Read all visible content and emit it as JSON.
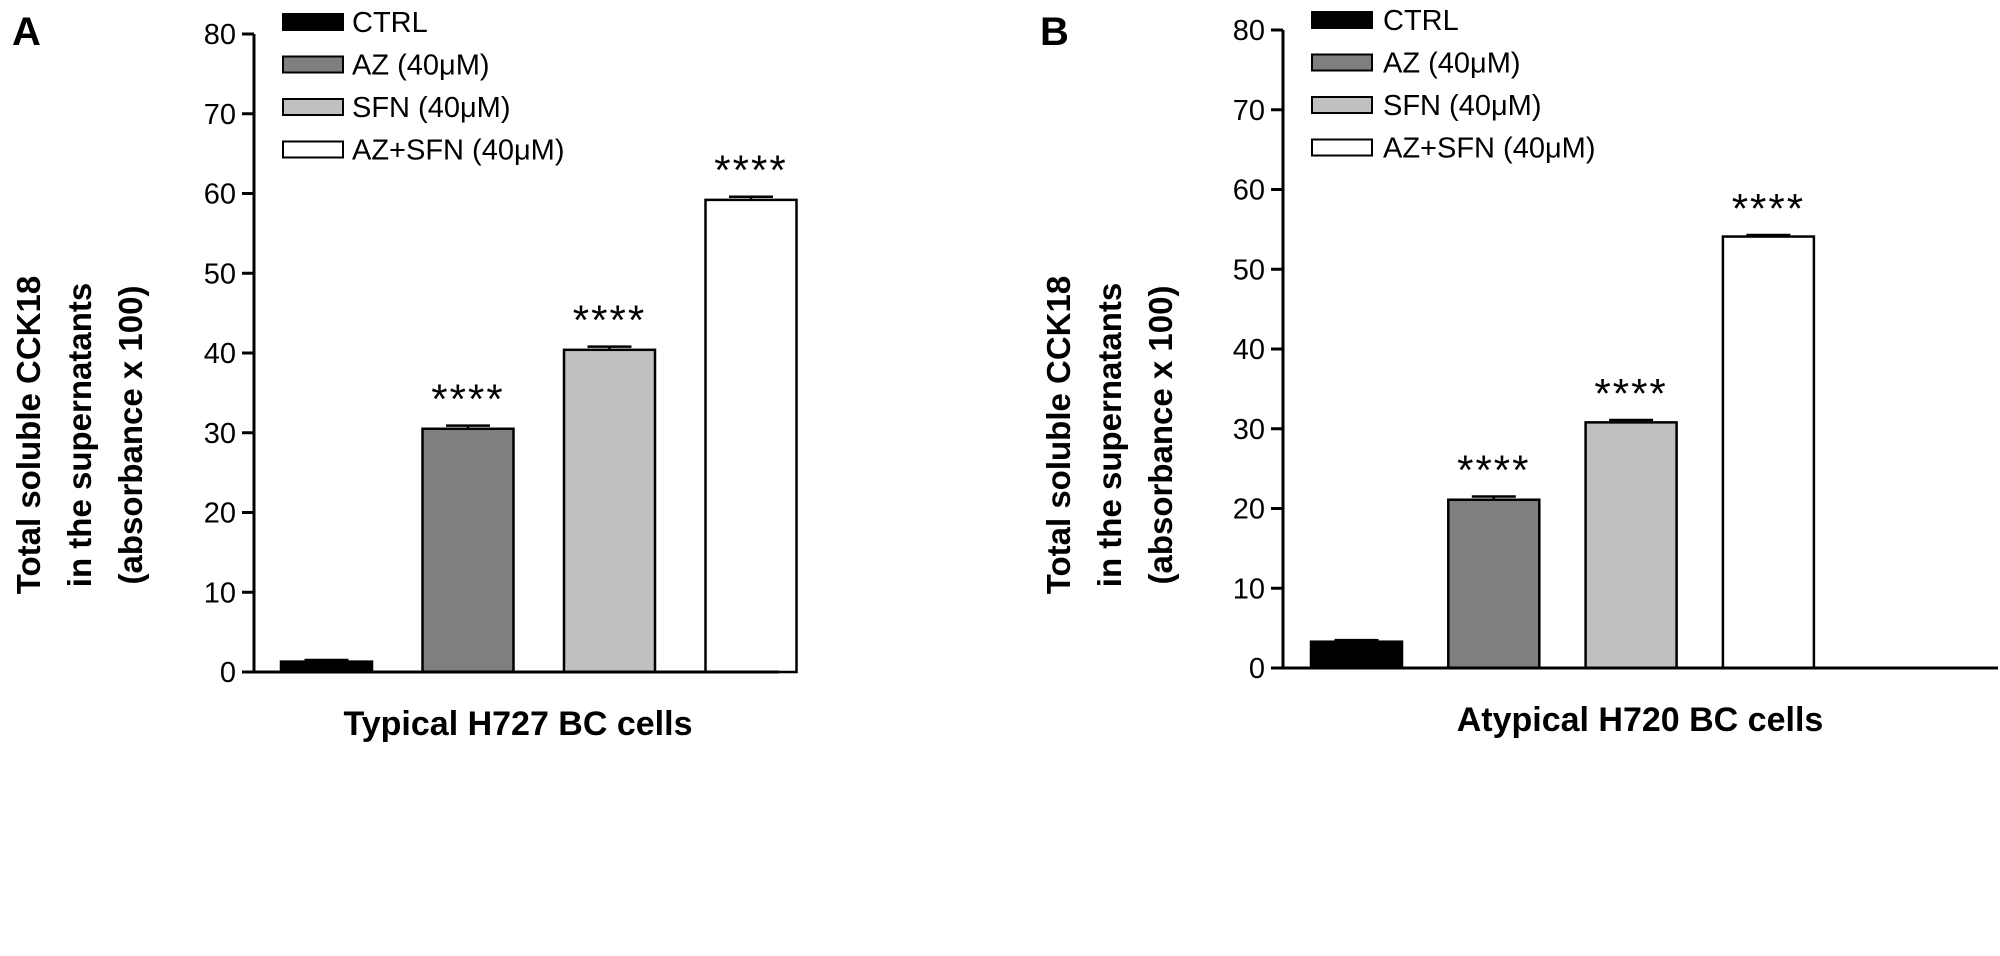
{
  "chart_data": [
    {
      "panel": "A",
      "type": "bar",
      "xlabel": "Typical H727 BC cells",
      "ylabel": [
        "Total soluble CCK18",
        "in the supernatants",
        "(absorbance x 100)"
      ],
      "ylim": [
        0,
        80
      ],
      "yticks": [
        "0",
        "10",
        "20",
        "30",
        "40",
        "50",
        "60",
        "70",
        "80"
      ],
      "legend_position": "top-left",
      "series": [
        {
          "name": "CTRL",
          "value": 1.3,
          "error": 0.2,
          "color": "#000000",
          "significance": ""
        },
        {
          "name": "AZ (40μM)",
          "value": 30.5,
          "error": 0.4,
          "color": "#7f7f7f",
          "significance": "****"
        },
        {
          "name": "SFN (40μM)",
          "value": 40.4,
          "error": 0.4,
          "color": "#c0c0c0",
          "significance": "****"
        },
        {
          "name": "AZ+SFN (40μM)",
          "value": 59.2,
          "error": 0.4,
          "color": "#ffffff",
          "significance": "****"
        }
      ]
    },
    {
      "panel": "B",
      "type": "bar",
      "xlabel": "Atypical H720 BC cells",
      "ylabel": [
        "Total soluble CCK18",
        "in the supernatants",
        "(absorbance x 100)"
      ],
      "ylim": [
        0,
        80
      ],
      "yticks": [
        "0",
        "10",
        "20",
        "30",
        "40",
        "50",
        "60",
        "70",
        "80"
      ],
      "legend_position": "top-left",
      "series": [
        {
          "name": "CTRL",
          "value": 3.3,
          "error": 0.2,
          "color": "#000000",
          "significance": ""
        },
        {
          "name": "AZ (40μM)",
          "value": 21.1,
          "error": 0.4,
          "color": "#7f7f7f",
          "significance": "****"
        },
        {
          "name": "SFN (40μM)",
          "value": 30.8,
          "error": 0.3,
          "color": "#c0c0c0",
          "significance": "****"
        },
        {
          "name": "AZ+SFN (40μM)",
          "value": 54.1,
          "error": 0.2,
          "color": "#ffffff",
          "significance": "****"
        }
      ]
    }
  ]
}
